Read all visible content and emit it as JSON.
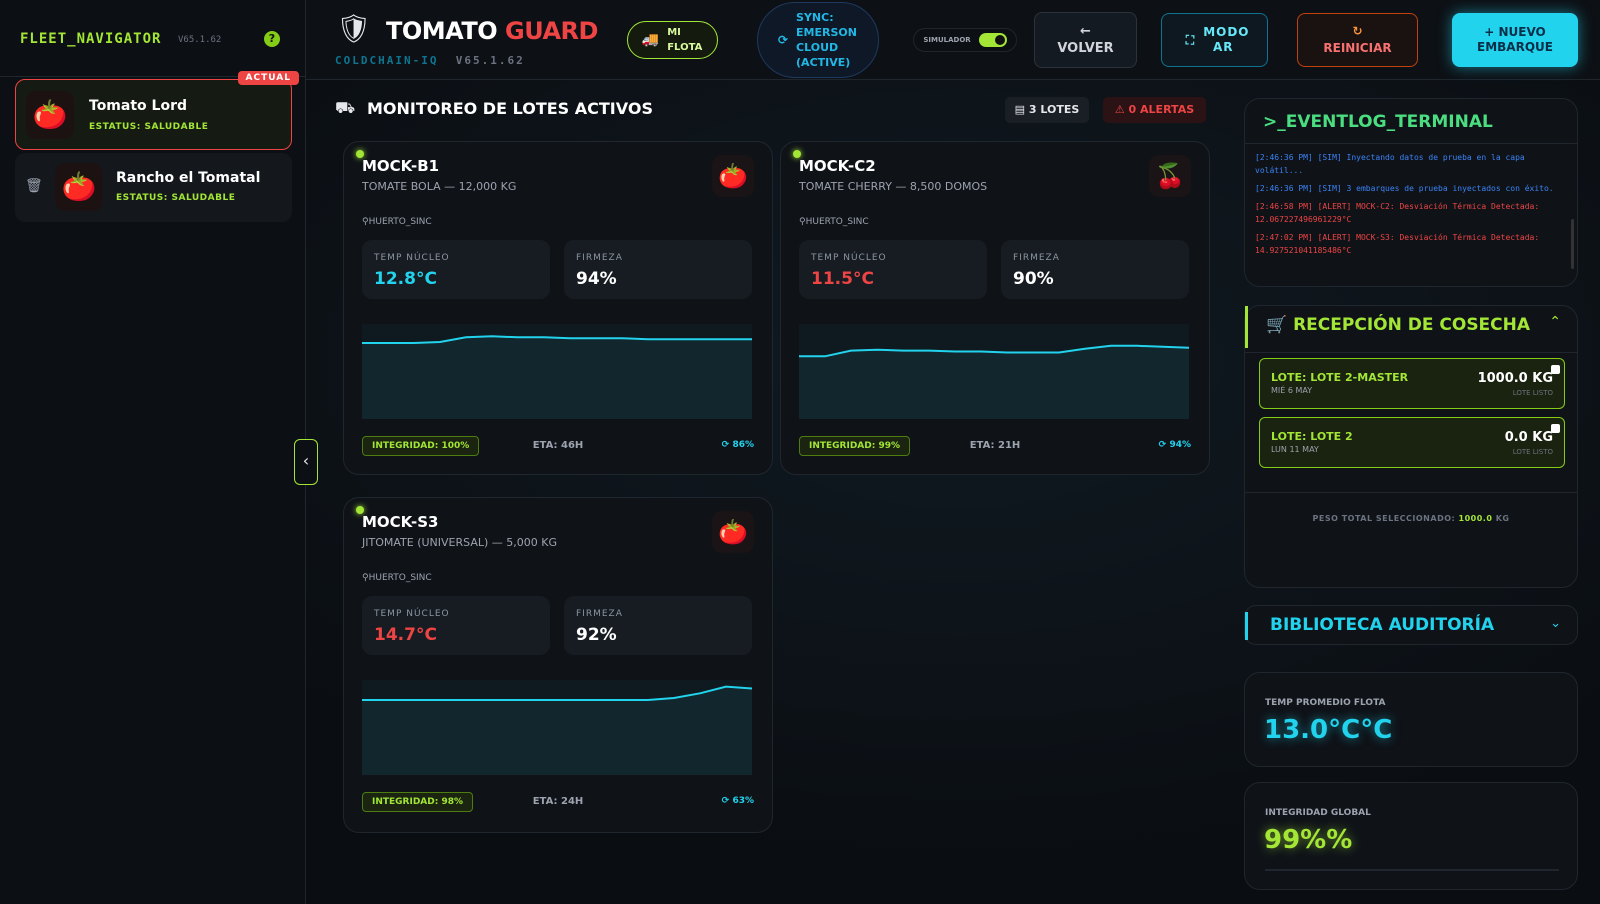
{
  "sidebar": {
    "title": "FLEET_NAVIGATOR",
    "version": "V65.1.62",
    "help": "?",
    "farms": [
      {
        "name": "Tomato Lord",
        "status": "ESTATUS: SALUDABLE",
        "badge": "ACTUAL"
      },
      {
        "name": "Rancho el Tomatal",
        "status": "ESTATUS: SALUDABLE"
      }
    ]
  },
  "header": {
    "brand_main": "TOMATO",
    "brand_accent": "GUARD",
    "subtitle": "COLDCHAIN-IQ",
    "version": "V65.1.62",
    "fleet_button": "MI FLOTA",
    "sync_status": "SYNC: EMERSON CLOUD (ACTIVE)",
    "simulator_label": "SIMULADOR",
    "back_button": "VOLVER",
    "ar_button": "MODO AR",
    "reset_button": "REINICIAR",
    "new_button": "NUEVO EMBARQUE"
  },
  "main": {
    "title": "MONITOREO DE LOTES ACTIVOS",
    "lots_badge": "3 LOTES",
    "alerts_badge": "0 ALERTAS",
    "cards": [
      {
        "id": "MOCK-B1",
        "description": "TOMATE BOLA — 12,000 KG",
        "location": "HUERTO_SINC",
        "temp_label": "TEMP NÚCLEO",
        "temp": "12.8°C",
        "temp_color": "#22d3ee",
        "firmness_label": "FIRMEZA",
        "firmness": "94%",
        "integrity": "INTEGRIDAD: 100%",
        "eta": "ETA: 46H",
        "sync": "86%",
        "trend": [
          80,
          80,
          80,
          81,
          86,
          87,
          86,
          86,
          85,
          85,
          85,
          84,
          84,
          84,
          84,
          84
        ]
      },
      {
        "id": "MOCK-C2",
        "description": "TOMATE CHERRY — 8,500 DOMOS",
        "location": "HUERTO_SINC",
        "temp_label": "TEMP NÚCLEO",
        "temp": "11.5°C",
        "temp_color": "#ef4444",
        "firmness_label": "FIRMEZA",
        "firmness": "90%",
        "integrity": "INTEGRIDAD: 99%",
        "eta": "ETA: 21H",
        "sync": "94%",
        "trend": [
          66,
          66,
          72,
          73,
          72,
          72,
          71,
          71,
          70,
          70,
          70,
          74,
          77,
          77,
          76,
          75
        ]
      },
      {
        "id": "MOCK-S3",
        "description": "JITOMATE (UNIVERSAL) — 5,000 KG",
        "location": "HUERTO_SINC",
        "temp_label": "TEMP NÚCLEO",
        "temp": "14.7°C",
        "temp_color": "#ef4444",
        "firmness_label": "FIRMEZA",
        "firmness": "92%",
        "integrity": "INTEGRIDAD: 98%",
        "eta": "ETA: 24H",
        "sync": "63%",
        "trend": [
          79,
          79,
          79,
          79,
          79,
          79,
          79,
          79,
          79,
          79,
          79,
          79,
          81,
          86,
          93,
          91
        ]
      }
    ]
  },
  "terminal": {
    "title": ">_EVENTLOG_TERMINAL",
    "logs": [
      {
        "level": "SIM",
        "text": "[2:46:36 PM] [SIM] Inyectando datos de prueba en la capa volátil..."
      },
      {
        "level": "SIM",
        "text": "[2:46:36 PM] [SIM] 3 embarques de prueba inyectados con éxito."
      },
      {
        "level": "ALERT",
        "text": "[2:46:58 PM] [ALERT] MOCK-C2: Desviación Térmica Detectada: 12.067227496961229°C"
      },
      {
        "level": "ALERT",
        "text": "[2:47:02 PM] [ALERT] MOCK-S3: Desviación Térmica Detectada: 14.927521041185486°C"
      }
    ]
  },
  "reception": {
    "title": "RECEPCIÓN DE COSECHA",
    "lots": [
      {
        "name": "LOTE: LOTE 2-MASTER",
        "date": "MIÉ 6 MAY",
        "weight": "1000.0 KG",
        "status": "LOTE LISTO"
      },
      {
        "name": "LOTE: LOTE 2",
        "date": "LUN 11 MAY",
        "weight": "0.0 KG",
        "status": "LOTE LISTO"
      }
    ],
    "total_label": "PESO TOTAL SELECCIONADO:",
    "total_value": "1000.0",
    "total_unit": "KG"
  },
  "library": {
    "title": "BIBLIOTECA AUDITORÍA"
  },
  "stats": [
    {
      "label": "TEMP PROMEDIO FLOTA",
      "value": "13.0°C°C",
      "color": "#22d3ee"
    },
    {
      "label": "INTEGRIDAD GLOBAL",
      "value": "99%%",
      "color": "#a3e635"
    }
  ]
}
